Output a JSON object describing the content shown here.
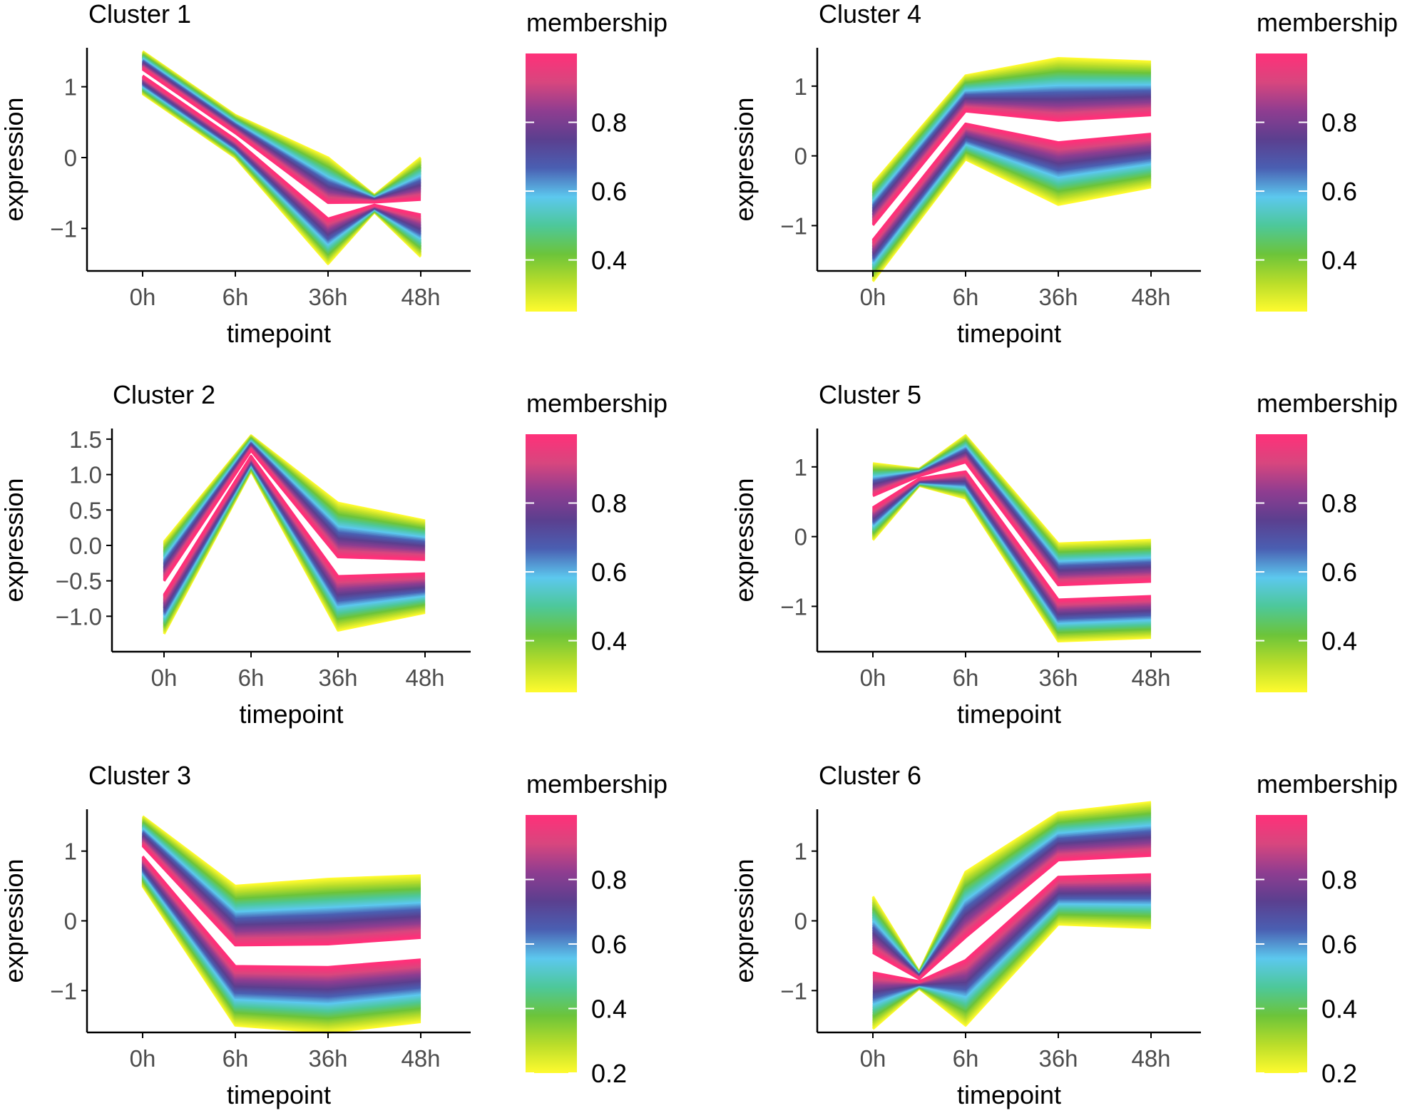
{
  "colors": {
    "background": "#ffffff",
    "axis": "#000000",
    "tick_label": "#4d4d4d",
    "gradient": [
      "#fffb2e",
      "#b9dd2a",
      "#6cc43a",
      "#4dc89a",
      "#5cc8ee",
      "#4a5fb2",
      "#5b3f8f",
      "#8f3d90",
      "#d8467e",
      "#ff3079"
    ]
  },
  "shared": {
    "xlabel": "timepoint",
    "ylabel": "expression",
    "legend_title": "membership",
    "categories": [
      "0h",
      "6h",
      "36h",
      "48h"
    ]
  },
  "chart_data": [
    {
      "type": "line",
      "title": "Cluster 1",
      "xlabel": "timepoint",
      "ylabel": "expression",
      "categories": [
        "0h",
        "6h",
        "36h",
        "48h"
      ],
      "ylim": [
        -1.6,
        1.55
      ],
      "yticks": [
        {
          "value": 1,
          "label": "1"
        },
        {
          "value": 0,
          "label": "0"
        },
        {
          "value": -1,
          "label": "−1"
        }
      ],
      "center": [
        1.2,
        0.3,
        -0.75,
        -0.7
      ],
      "spread": [
        0.3,
        0.3,
        0.75,
        0.7
      ],
      "knot": {
        "after": 2,
        "value": -0.65
      },
      "legend": {
        "title": "membership",
        "range": [
          0.25,
          1.0
        ],
        "ticks": [
          0.4,
          0.6,
          0.8
        ],
        "tick_labels": [
          "0.4",
          "0.6",
          "0.8"
        ]
      }
    },
    {
      "type": "line",
      "title": "Cluster 2",
      "xlabel": "timepoint",
      "ylabel": "expression",
      "categories": [
        "0h",
        "6h",
        "36h",
        "48h"
      ],
      "ylim": [
        -1.5,
        1.65
      ],
      "yticks": [
        {
          "value": 1.5,
          "label": "1.5"
        },
        {
          "value": 1.0,
          "label": "1.0"
        },
        {
          "value": 0.5,
          "label": "0.5"
        },
        {
          "value": 0.0,
          "label": "0.0"
        },
        {
          "value": -0.5,
          "label": "−0.5"
        },
        {
          "value": -1.0,
          "label": "−1.0"
        }
      ],
      "center": [
        -0.6,
        1.3,
        -0.3,
        -0.3
      ],
      "spread": [
        0.65,
        0.25,
        0.9,
        0.65
      ],
      "knot": null,
      "legend": {
        "title": "membership",
        "range": [
          0.25,
          1.0
        ],
        "ticks": [
          0.4,
          0.6,
          0.8
        ],
        "tick_labels": [
          "0.4",
          "0.6",
          "0.8"
        ]
      }
    },
    {
      "type": "line",
      "title": "Cluster 3",
      "xlabel": "timepoint",
      "ylabel": "expression",
      "categories": [
        "0h",
        "6h",
        "36h",
        "48h"
      ],
      "ylim": [
        -1.6,
        1.6
      ],
      "yticks": [
        {
          "value": 1,
          "label": "1"
        },
        {
          "value": 0,
          "label": "0"
        },
        {
          "value": -1,
          "label": "−1"
        }
      ],
      "center": [
        1.0,
        -0.5,
        -0.5,
        -0.4
      ],
      "spread": [
        0.5,
        1.0,
        1.1,
        1.05
      ],
      "knot": null,
      "legend": {
        "title": "membership",
        "range": [
          0.2,
          1.0
        ],
        "ticks": [
          0.2,
          0.4,
          0.6,
          0.8
        ],
        "tick_labels": [
          "0.2",
          "0.4",
          "0.6",
          "0.8"
        ]
      }
    },
    {
      "type": "line",
      "title": "Cluster 4",
      "xlabel": "timepoint",
      "ylabel": "expression",
      "categories": [
        "0h",
        "6h",
        "36h",
        "48h"
      ],
      "ylim": [
        -1.65,
        1.55
      ],
      "yticks": [
        {
          "value": 1,
          "label": "1"
        },
        {
          "value": 0,
          "label": "0"
        },
        {
          "value": -1,
          "label": "−1"
        }
      ],
      "center": [
        -1.1,
        0.55,
        0.35,
        0.45
      ],
      "spread": [
        0.7,
        0.6,
        1.05,
        0.9
      ],
      "knot": null,
      "legend": {
        "title": "membership",
        "range": [
          0.25,
          1.0
        ],
        "ticks": [
          0.4,
          0.6,
          0.8
        ],
        "tick_labels": [
          "0.4",
          "0.6",
          "0.8"
        ]
      }
    },
    {
      "type": "line",
      "title": "Cluster 5",
      "xlabel": "timepoint",
      "ylabel": "expression",
      "categories": [
        "0h",
        "6h",
        "36h",
        "48h"
      ],
      "ylim": [
        -1.65,
        1.55
      ],
      "yticks": [
        {
          "value": 1,
          "label": "1"
        },
        {
          "value": 0,
          "label": "0"
        },
        {
          "value": -1,
          "label": "−1"
        }
      ],
      "center": [
        0.5,
        1.0,
        -0.8,
        -0.75
      ],
      "spread": [
        0.55,
        0.45,
        0.7,
        0.7
      ],
      "knot": {
        "after": 0,
        "value": 0.85
      },
      "legend": {
        "title": "membership",
        "range": [
          0.25,
          1.0
        ],
        "ticks": [
          0.4,
          0.6,
          0.8
        ],
        "tick_labels": [
          "0.4",
          "0.6",
          "0.8"
        ]
      }
    },
    {
      "type": "line",
      "title": "Cluster 6",
      "xlabel": "timepoint",
      "ylabel": "expression",
      "categories": [
        "0h",
        "6h",
        "36h",
        "48h"
      ],
      "ylim": [
        -1.6,
        1.6
      ],
      "yticks": [
        {
          "value": 1,
          "label": "1"
        },
        {
          "value": 0,
          "label": "0"
        },
        {
          "value": -1,
          "label": "−1"
        }
      ],
      "center": [
        -0.6,
        -0.4,
        0.75,
        0.8
      ],
      "spread": [
        0.95,
        1.1,
        0.8,
        0.9
      ],
      "knot": {
        "after": 0,
        "value": -0.85
      },
      "legend": {
        "title": "membership",
        "range": [
          0.2,
          1.0
        ],
        "ticks": [
          0.2,
          0.4,
          0.6,
          0.8
        ],
        "tick_labels": [
          "0.2",
          "0.4",
          "0.6",
          "0.8"
        ]
      }
    }
  ]
}
